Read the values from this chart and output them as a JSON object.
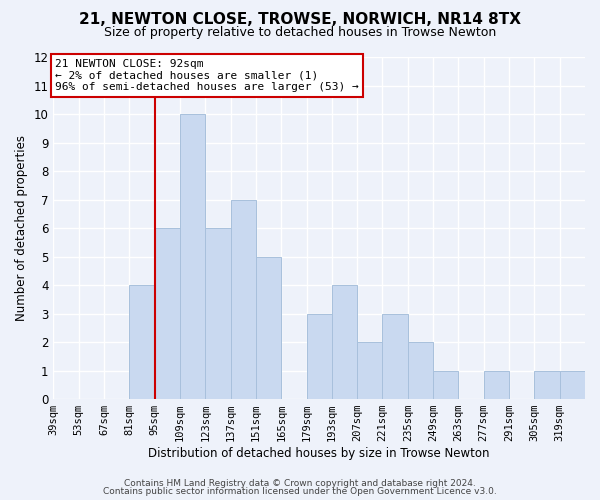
{
  "title": "21, NEWTON CLOSE, TROWSE, NORWICH, NR14 8TX",
  "subtitle": "Size of property relative to detached houses in Trowse Newton",
  "xlabel": "Distribution of detached houses by size in Trowse Newton",
  "ylabel": "Number of detached properties",
  "bar_color": "#c9d9f0",
  "bar_edge_color": "#a8c0dc",
  "annotation_title": "21 NEWTON CLOSE: 92sqm",
  "annotation_line1": "← 2% of detached houses are smaller (1)",
  "annotation_line2": "96% of semi-detached houses are larger (53) →",
  "annotation_box_color": "#ffffff",
  "annotation_box_edge": "#cc0000",
  "vline_color": "#cc0000",
  "bins": [
    39,
    53,
    67,
    81,
    95,
    109,
    123,
    137,
    151,
    165,
    179,
    193,
    207,
    221,
    235,
    249,
    263,
    277,
    291,
    305,
    319
  ],
  "bin_labels": [
    "39sqm",
    "53sqm",
    "67sqm",
    "81sqm",
    "95sqm",
    "109sqm",
    "123sqm",
    "137sqm",
    "151sqm",
    "165sqm",
    "179sqm",
    "193sqm",
    "207sqm",
    "221sqm",
    "235sqm",
    "249sqm",
    "263sqm",
    "277sqm",
    "291sqm",
    "305sqm",
    "319sqm"
  ],
  "counts": [
    0,
    0,
    0,
    4,
    6,
    10,
    6,
    7,
    5,
    0,
    3,
    4,
    2,
    3,
    2,
    1,
    0,
    1,
    0,
    1,
    1
  ],
  "ylim": [
    0,
    12
  ],
  "yticks": [
    0,
    1,
    2,
    3,
    4,
    5,
    6,
    7,
    8,
    9,
    10,
    11,
    12
  ],
  "footer1": "Contains HM Land Registry data © Crown copyright and database right 2024.",
  "footer2": "Contains public sector information licensed under the Open Government Licence v3.0.",
  "background_color": "#eef2fa"
}
